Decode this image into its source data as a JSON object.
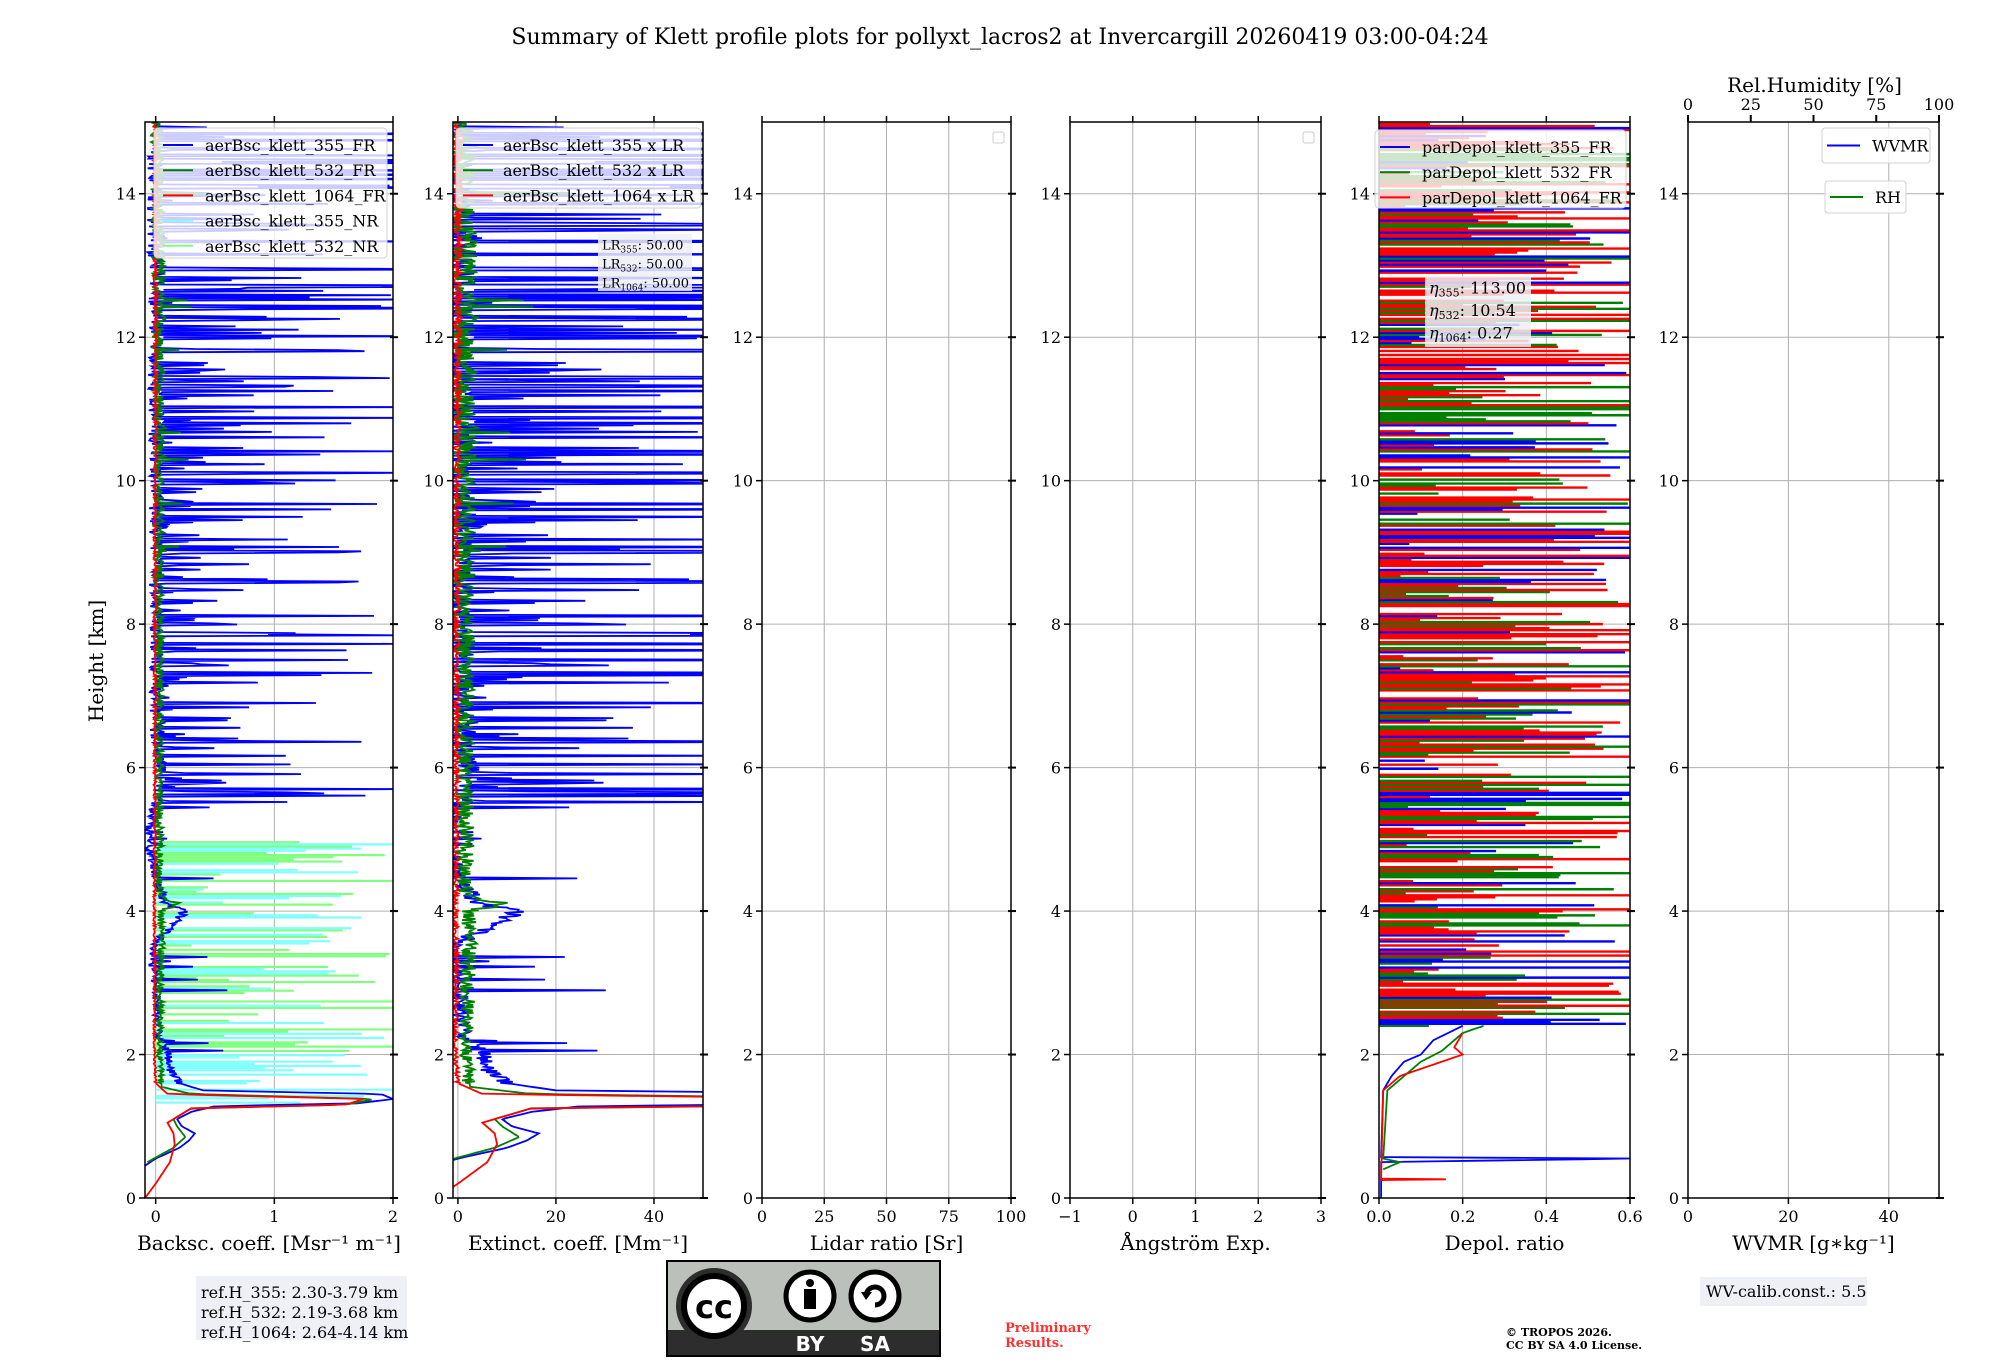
{
  "title": "Summary of Klett profile plots for pollyxt_lacros2 at Invercargill 20260419 03:00-04:24",
  "ylabel": "Height [km]",
  "ref_heights": [
    "ref.H_355: 2.30-3.79 km",
    "ref.H_532: 2.19-3.68 km",
    "ref.H_1064: 2.64-4.14 km"
  ],
  "wv_calib": "WV-calib.const.: 5.5",
  "preliminary": [
    "Preliminary",
    "Results."
  ],
  "copyright": [
    "© TROPOS 2026.",
    "CC BY SA 4.0 License."
  ],
  "license_logo": {
    "cc": "cc",
    "by": "BY",
    "sa": "SA"
  },
  "colors": {
    "blue": "#0000ff",
    "green": "#008000",
    "red": "#ff0000",
    "cyan": "#80ffff",
    "lightgreen": "#80ff80",
    "grid": "#b0b0b0"
  },
  "chart_data": {
    "type": "line",
    "ylim": [
      0,
      15
    ],
    "yticks": [
      0,
      2,
      4,
      6,
      8,
      10,
      12,
      14
    ],
    "yticklabels": [
      "0",
      "2",
      "4",
      "6",
      "8",
      "10",
      "12",
      "14"
    ],
    "panels": [
      {
        "id": "backscatter",
        "xlabel": "Backsc. coeff. [Msr⁻¹ m⁻¹]",
        "xlim": [
          -0.09,
          2.0
        ],
        "xticks": [
          0,
          1,
          2
        ],
        "xticklabels": [
          "0",
          "1",
          "2"
        ],
        "legend": "top-left",
        "series": [
          {
            "name": "aerBsc_klett_355_FR",
            "color": "#0000ff",
            "profile": [
              [
                0.45,
                -0.09
              ],
              [
                0.55,
                0.0
              ],
              [
                0.7,
                0.2
              ],
              [
                0.8,
                0.28
              ],
              [
                0.9,
                0.33
              ],
              [
                1.0,
                0.22
              ],
              [
                1.1,
                0.18
              ],
              [
                1.2,
                0.3
              ],
              [
                1.28,
                0.5
              ],
              [
                1.32,
                1.7
              ],
              [
                1.38,
                2.0
              ],
              [
                1.45,
                1.9
              ],
              [
                1.5,
                0.4
              ],
              [
                1.6,
                0.2
              ],
              [
                1.8,
                0.12
              ],
              [
                2.0,
                0.1
              ],
              [
                2.3,
                0.02
              ],
              [
                3.0,
                0.0
              ],
              [
                3.5,
                -0.03
              ],
              [
                4.0,
                0.25
              ],
              [
                4.1,
                0.08
              ],
              [
                4.5,
                0.0
              ],
              [
                5.0,
                -0.06
              ],
              [
                6.0,
                0.05
              ],
              [
                6.4,
                0.0
              ],
              [
                15,
                0.0
              ]
            ]
          },
          {
            "name": "aerBsc_klett_532_FR",
            "color": "#008000",
            "profile": [
              [
                0.5,
                -0.07
              ],
              [
                0.7,
                0.15
              ],
              [
                0.85,
                0.25
              ],
              [
                1.0,
                0.18
              ],
              [
                1.1,
                0.15
              ],
              [
                1.25,
                0.3
              ],
              [
                1.3,
                1.6
              ],
              [
                1.38,
                1.85
              ],
              [
                1.45,
                0.3
              ],
              [
                1.55,
                0.05
              ],
              [
                2.0,
                0.03
              ],
              [
                4.0,
                0.05
              ],
              [
                4.1,
                0.2
              ],
              [
                4.2,
                0.03
              ],
              [
                15,
                0.02
              ]
            ]
          },
          {
            "name": "aerBsc_klett_1064_FR",
            "color": "#ff0000",
            "profile": [
              [
                0.0,
                -0.09
              ],
              [
                0.2,
                0.0
              ],
              [
                0.5,
                0.12
              ],
              [
                0.75,
                0.16
              ],
              [
                0.9,
                0.15
              ],
              [
                1.05,
                0.1
              ],
              [
                1.25,
                0.3
              ],
              [
                1.3,
                1.6
              ],
              [
                1.38,
                1.75
              ],
              [
                1.45,
                0.1
              ],
              [
                1.6,
                0.0
              ],
              [
                2.0,
                -0.01
              ],
              [
                15,
                0.0
              ]
            ]
          },
          {
            "name": "aerBsc_klett_355_NR",
            "color": "#80ffff",
            "range_km": [
              1.3,
              5.0
            ]
          },
          {
            "name": "aerBsc_klett_532_NR",
            "color": "#80ff80",
            "range_km": [
              1.3,
              5.0
            ]
          }
        ]
      },
      {
        "id": "extinction",
        "xlabel": "Extinct. coeff. [Mm⁻¹]",
        "xlim": [
          -1,
          50
        ],
        "xticks": [
          0,
          20,
          40
        ],
        "xticklabels": [
          "0",
          "20",
          "40"
        ],
        "legend": "top-left",
        "series": [
          {
            "name": "aerBsc_klett_355 x LR",
            "color": "#0000ff",
            "from": "aerBsc_klett_355_FR",
            "lidar_ratio": 50
          },
          {
            "name": "aerBsc_klett_532 x LR",
            "color": "#008000",
            "from": "aerBsc_klett_532_FR",
            "lidar_ratio": 50
          },
          {
            "name": "aerBsc_klett_1064 x LR",
            "color": "#ff0000",
            "from": "aerBsc_klett_1064_FR",
            "lidar_ratio": 50
          }
        ],
        "annotation": [
          {
            "symbol": "LR",
            "sub": "355",
            "sep": ": ",
            "value": "50.00"
          },
          {
            "symbol": "LR",
            "sub": "532",
            "sep": ": ",
            "value": "50.00"
          },
          {
            "symbol": "LR",
            "sub": "1064",
            "sep": ": ",
            "value": "50.00"
          }
        ]
      },
      {
        "id": "lidar-ratio",
        "xlabel": "Lidar ratio [Sr]",
        "xlim": [
          0,
          100
        ],
        "xticks": [
          0,
          25,
          50,
          75,
          100
        ],
        "xticklabels": [
          "0",
          "25",
          "50",
          "75",
          "100"
        ],
        "legend": "top-right-empty",
        "series": []
      },
      {
        "id": "angstrom",
        "xlabel": "Ångström Exp.",
        "xlim": [
          -1,
          3
        ],
        "xticks": [
          -1,
          0,
          1,
          2,
          3
        ],
        "xticklabels": [
          "−1",
          "0",
          "1",
          "2",
          "3"
        ],
        "legend": "top-right-empty",
        "series": []
      },
      {
        "id": "depolarization",
        "xlabel": "Depol. ratio",
        "xlim": [
          0,
          0.6
        ],
        "xticks": [
          0,
          0.2,
          0.4,
          0.6
        ],
        "xticklabels": [
          "0.0",
          "0.2",
          "0.4",
          "0.6"
        ],
        "legend": "top-left",
        "series": [
          {
            "name": "parDepol_klett_355_FR",
            "color": "#0000ff",
            "profile": [
              [
                0.0,
                0.005
              ],
              [
                0.5,
                0.005
              ],
              [
                0.55,
                0.6
              ],
              [
                0.57,
                0.005
              ],
              [
                1.5,
                0.01
              ],
              [
                1.7,
                0.03
              ],
              [
                1.9,
                0.06
              ],
              [
                2.0,
                0.1
              ],
              [
                2.2,
                0.13
              ],
              [
                2.4,
                0.2
              ]
            ]
          },
          {
            "name": "parDepol_klett_532_FR",
            "color": "#008000",
            "profile": [
              [
                0.4,
                0.01
              ],
              [
                0.5,
                0.05
              ],
              [
                0.55,
                0.01
              ],
              [
                1.5,
                0.02
              ],
              [
                1.7,
                0.06
              ],
              [
                1.9,
                0.1
              ],
              [
                2.05,
                0.15
              ],
              [
                2.3,
                0.2
              ],
              [
                2.4,
                0.25
              ]
            ]
          },
          {
            "name": "parDepol_klett_1064_FR",
            "color": "#ff0000",
            "profile": [
              [
                0.25,
                0.005
              ],
              [
                0.26,
                0.16
              ],
              [
                0.27,
                0.005
              ],
              [
                1.5,
                0.01
              ],
              [
                1.7,
                0.05
              ],
              [
                1.9,
                0.15
              ],
              [
                2.0,
                0.2
              ],
              [
                2.1,
                0.18
              ],
              [
                2.3,
                0.2
              ]
            ]
          }
        ],
        "annotation": [
          {
            "symbol": "η",
            "sub": "355",
            "sep": ": ",
            "value": "113.00"
          },
          {
            "symbol": "η",
            "sub": "532",
            "sep": ": ",
            "value": "10.54"
          },
          {
            "symbol": "η",
            "sub": "1064",
            "sep": ": ",
            "value": "0.27"
          }
        ]
      },
      {
        "id": "water-vapor",
        "xlabel": "WVMR [g∗kg⁻¹]",
        "xlim": [
          0,
          50
        ],
        "xticks": [
          0,
          20,
          40
        ],
        "xticklabels": [
          "0",
          "20",
          "40"
        ],
        "top_xlabel": "Rel.Humidity [%]",
        "top_xlim": [
          0,
          100
        ],
        "top_xticks": [
          0,
          25,
          50,
          75,
          100
        ],
        "top_xticklabels": [
          "0",
          "25",
          "50",
          "75",
          "100"
        ],
        "legend": "top-right",
        "series": [
          {
            "name": "WVMR",
            "color": "#0000ff"
          },
          {
            "name": "RH",
            "color": "#008000"
          }
        ]
      }
    ]
  }
}
